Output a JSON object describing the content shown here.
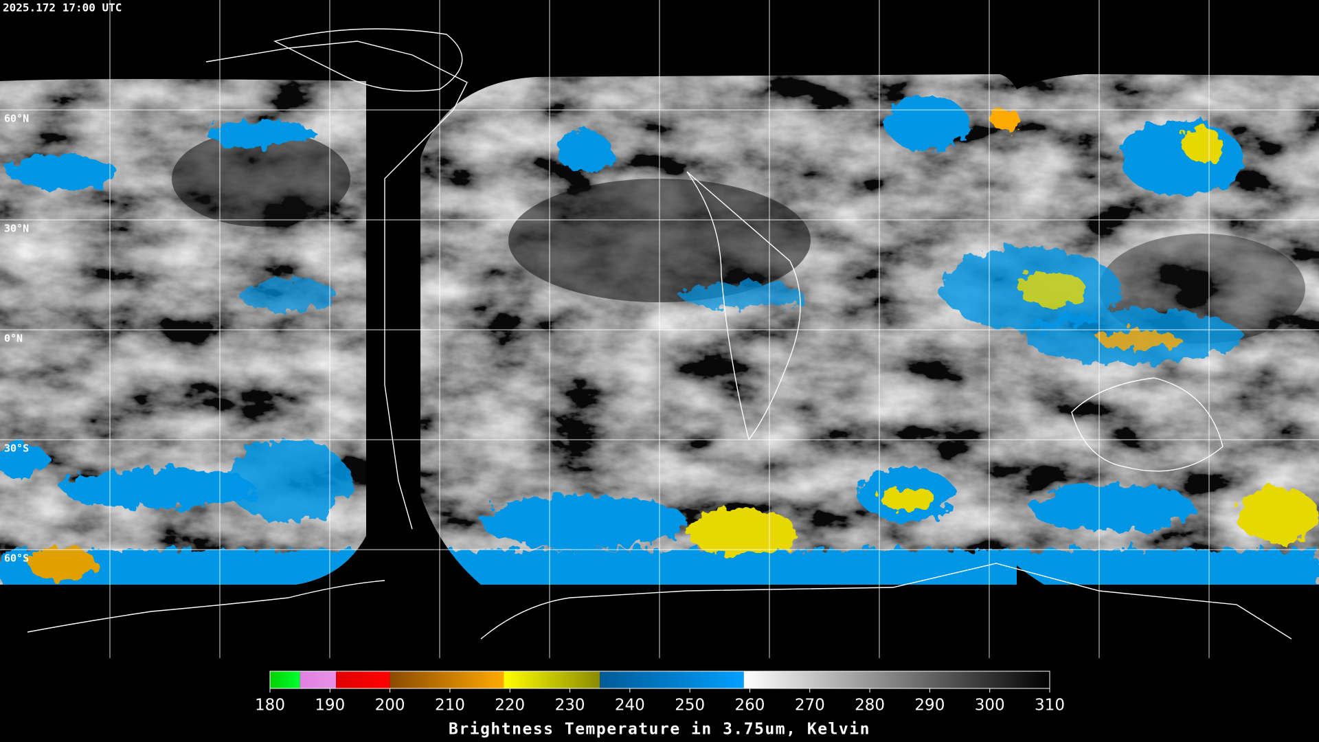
{
  "timestamp": "2025.172 17:00 UTC",
  "lat_labels": [
    "60°N",
    "30°N",
    "0°N",
    "30°S",
    "60°S"
  ],
  "colorbar": {
    "range": [
      180,
      310
    ],
    "ticks": [
      180,
      190,
      200,
      210,
      220,
      230,
      240,
      250,
      260,
      270,
      280,
      290,
      300,
      310
    ],
    "segments": [
      {
        "from": 180,
        "to": 185,
        "colors": [
          "#00d000",
          "#00ff30"
        ]
      },
      {
        "from": 185,
        "to": 191,
        "colors": [
          "#e080e0",
          "#e890e8"
        ]
      },
      {
        "from": 191,
        "to": 200,
        "colors": [
          "#e00000",
          "#ff0000"
        ]
      },
      {
        "from": 200,
        "to": 219,
        "colors": [
          "#8a4a00",
          "#ffaa00"
        ]
      },
      {
        "from": 219,
        "to": 235,
        "colors": [
          "#ffff00",
          "#8a8a00"
        ]
      },
      {
        "from": 235,
        "to": 259,
        "colors": [
          "#005a96",
          "#00a0ff"
        ]
      },
      {
        "from": 259,
        "to": 310,
        "colors": [
          "#ffffff",
          "#000000"
        ]
      }
    ],
    "label": "Brightness Temperature in 3.75um, Kelvin"
  }
}
